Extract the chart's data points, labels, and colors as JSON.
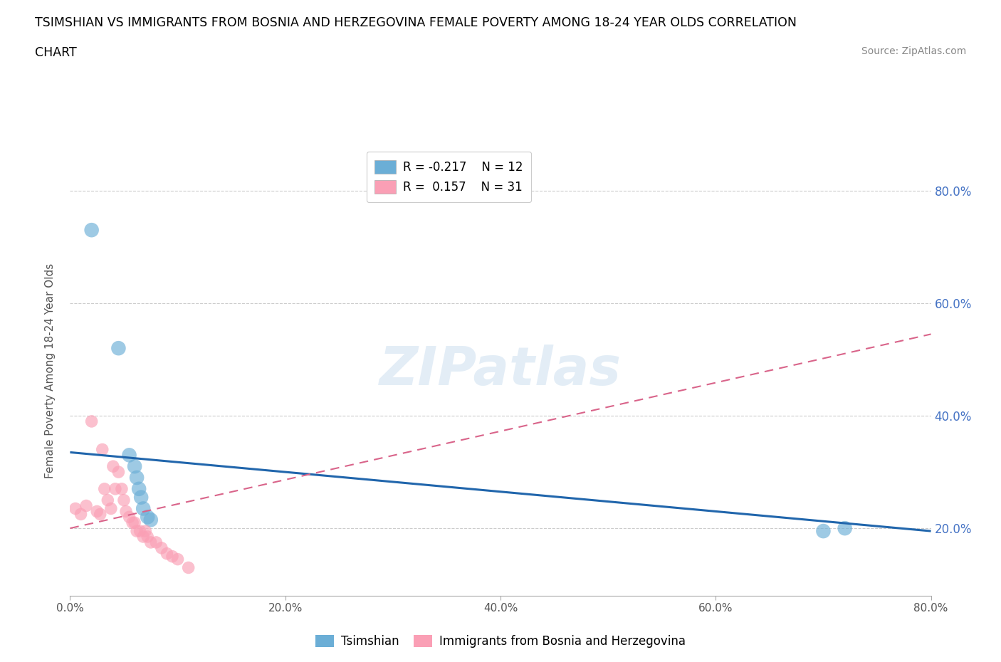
{
  "title_line1": "TSIMSHIAN VS IMMIGRANTS FROM BOSNIA AND HERZEGOVINA FEMALE POVERTY AMONG 18-24 YEAR OLDS CORRELATION",
  "title_line2": "CHART",
  "source_text": "Source: ZipAtlas.com",
  "ylabel": "Female Poverty Among 18-24 Year Olds",
  "watermark": "ZIPatlas",
  "xlim": [
    0.0,
    0.8
  ],
  "ylim": [
    0.08,
    0.88
  ],
  "xticks": [
    0.0,
    0.2,
    0.4,
    0.6,
    0.8
  ],
  "yticks": [
    0.2,
    0.4,
    0.6,
    0.8
  ],
  "ytick_labels_right": [
    "20.0%",
    "40.0%",
    "60.0%",
    "80.0%"
  ],
  "xtick_labels": [
    "0.0%",
    "20.0%",
    "40.0%",
    "60.0%",
    "80.0%"
  ],
  "tsimshian_color": "#6baed6",
  "bosnia_color": "#fa9fb5",
  "tsimshian_line_color": "#2166ac",
  "bosnia_line_color": "#d9648a",
  "legend_label_tsimshian": "R = -0.217    N = 12",
  "legend_label_bosnia": "R =  0.157    N = 31",
  "tsimshian_x": [
    0.02,
    0.045,
    0.055,
    0.06,
    0.062,
    0.064,
    0.066,
    0.068,
    0.072,
    0.075,
    0.7,
    0.72
  ],
  "tsimshian_y": [
    0.73,
    0.52,
    0.33,
    0.31,
    0.29,
    0.27,
    0.255,
    0.235,
    0.22,
    0.215,
    0.195,
    0.2
  ],
  "bosnia_x": [
    0.005,
    0.01,
    0.015,
    0.02,
    0.025,
    0.028,
    0.03,
    0.032,
    0.035,
    0.038,
    0.04,
    0.042,
    0.045,
    0.048,
    0.05,
    0.052,
    0.055,
    0.058,
    0.06,
    0.062,
    0.065,
    0.068,
    0.07,
    0.072,
    0.075,
    0.08,
    0.085,
    0.09,
    0.095,
    0.1,
    0.11
  ],
  "bosnia_y": [
    0.235,
    0.225,
    0.24,
    0.39,
    0.23,
    0.225,
    0.34,
    0.27,
    0.25,
    0.235,
    0.31,
    0.27,
    0.3,
    0.27,
    0.25,
    0.23,
    0.22,
    0.21,
    0.21,
    0.195,
    0.195,
    0.185,
    0.195,
    0.185,
    0.175,
    0.175,
    0.165,
    0.155,
    0.15,
    0.145,
    0.13
  ],
  "tsimshian_trend_x": [
    0.0,
    0.8
  ],
  "tsimshian_trend_y": [
    0.335,
    0.195
  ],
  "bosnia_trend_x": [
    0.0,
    0.8
  ],
  "bosnia_trend_y": [
    0.2,
    0.545
  ],
  "background_color": "#ffffff",
  "grid_color": "#cccccc",
  "title_color": "#000000",
  "right_tick_color": "#4472c4",
  "source_color": "#888888",
  "bottom_legend_tsimshian": "Tsimshian",
  "bottom_legend_bosnia": "Immigrants from Bosnia and Herzegovina"
}
